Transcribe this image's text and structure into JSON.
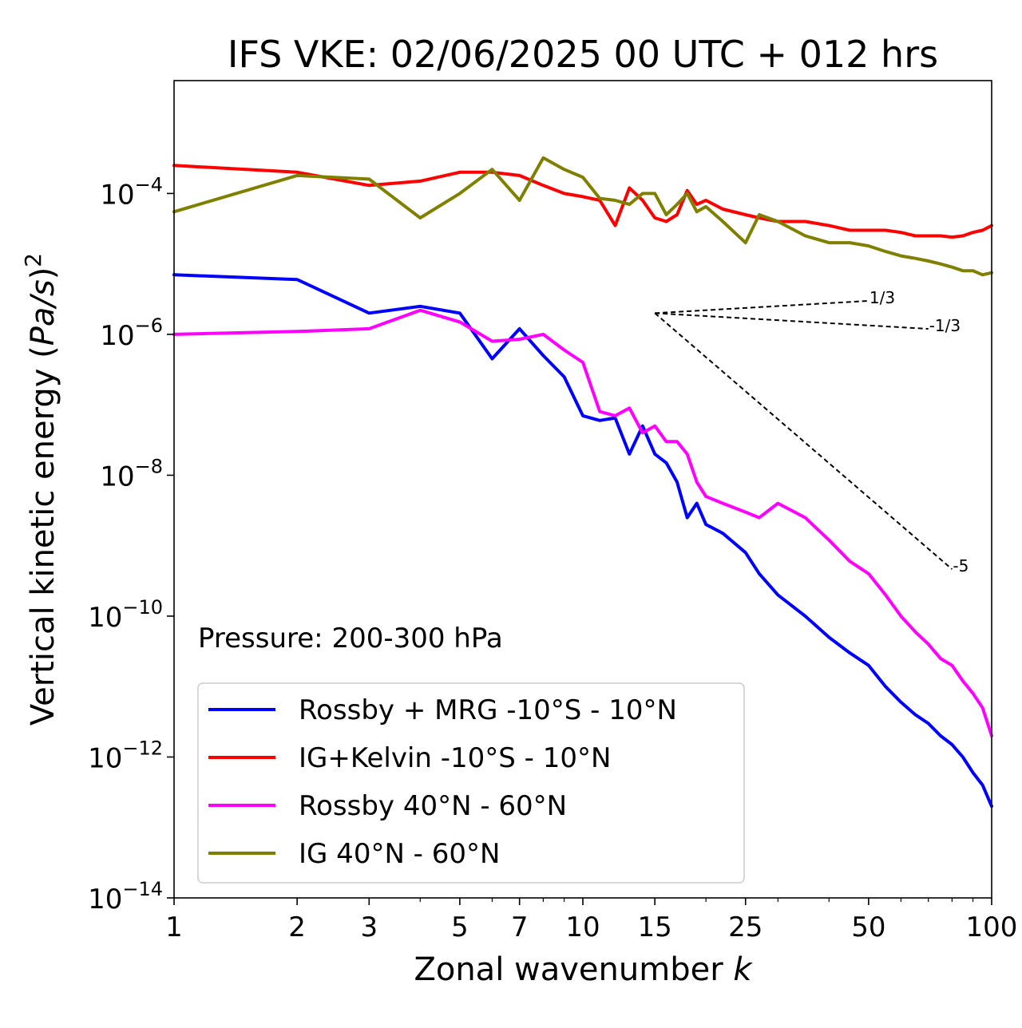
{
  "chart_data": {
    "type": "line",
    "title": "IFS VKE: 02/06/2025 00 UTC + 012 hrs",
    "xlabel": "Zonal wavenumber k",
    "ylabel": "Vertical kinetic energy (Pa/s)^2",
    "xscale": "log",
    "yscale": "log",
    "xlim": [
      1,
      100
    ],
    "ylim": [
      1e-14,
      0.004
    ],
    "xticks": [
      1,
      2,
      3,
      5,
      7,
      10,
      15,
      25,
      50,
      100
    ],
    "xtick_labels": [
      "1",
      "2",
      "3",
      "5",
      "7",
      "10",
      "15",
      "25",
      "50",
      "100"
    ],
    "yticks": [
      1e-14,
      1e-12,
      1e-10,
      1e-08,
      1e-06,
      0.0001
    ],
    "ytick_labels": [
      {
        "base": "10",
        "exp": "−14"
      },
      {
        "base": "10",
        "exp": "−12"
      },
      {
        "base": "10",
        "exp": "−10"
      },
      {
        "base": "10",
        "exp": "−8"
      },
      {
        "base": "10",
        "exp": "−6"
      },
      {
        "base": "10",
        "exp": "−4"
      }
    ],
    "grid": false,
    "legend_position": "lower-left",
    "annotation": "Pressure: 200-300 hPa",
    "series": [
      {
        "name": "Rossby + MRG -10°S - 10°N",
        "color": "#0000ff",
        "x": [
          1,
          2,
          3,
          4,
          5,
          6,
          7,
          8,
          9,
          10,
          11,
          12,
          13,
          14,
          15,
          16,
          17,
          18,
          19,
          20,
          22,
          25,
          27,
          30,
          35,
          40,
          45,
          50,
          55,
          60,
          65,
          70,
          75,
          80,
          85,
          90,
          95,
          100
        ],
        "y": [
          7e-06,
          6e-06,
          2e-06,
          2.5e-06,
          2e-06,
          4.5e-07,
          1.2e-06,
          5e-07,
          2.5e-07,
          7e-08,
          6e-08,
          6.5e-08,
          2e-08,
          5e-08,
          2e-08,
          1.5e-08,
          8e-09,
          2.5e-09,
          4e-09,
          2e-09,
          1.5e-09,
          8e-10,
          4e-10,
          2e-10,
          1e-10,
          5e-11,
          3e-11,
          2e-11,
          1e-11,
          6e-12,
          4e-12,
          3e-12,
          2e-12,
          1.5e-12,
          1e-12,
          6e-13,
          4e-13,
          2e-13
        ]
      },
      {
        "name": "IG+Kelvin -10°S - 10°N",
        "color": "#ff0000",
        "x": [
          1,
          2,
          3,
          4,
          5,
          6,
          7,
          8,
          9,
          10,
          11,
          12,
          13,
          14,
          15,
          16,
          17,
          18,
          19,
          20,
          22,
          25,
          27,
          30,
          35,
          40,
          45,
          50,
          55,
          60,
          65,
          70,
          75,
          80,
          85,
          90,
          95,
          100
        ],
        "y": [
          0.00025,
          0.0002,
          0.00013,
          0.00015,
          0.0002,
          0.0002,
          0.00018,
          0.00013,
          0.0001,
          9e-05,
          8e-05,
          3.5e-05,
          0.00012,
          8e-05,
          4.5e-05,
          4e-05,
          5e-05,
          0.00011,
          7e-05,
          8e-05,
          6e-05,
          5e-05,
          4.5e-05,
          4e-05,
          4e-05,
          3.5e-05,
          3e-05,
          3e-05,
          3e-05,
          2.8e-05,
          2.5e-05,
          2.5e-05,
          2.5e-05,
          2.4e-05,
          2.5e-05,
          2.8e-05,
          3e-05,
          3.5e-05
        ]
      },
      {
        "name": "Rossby 40°N - 60°N",
        "color": "#ff00ff",
        "x": [
          1,
          2,
          3,
          4,
          5,
          6,
          7,
          8,
          9,
          10,
          11,
          12,
          13,
          14,
          15,
          16,
          17,
          18,
          19,
          20,
          22,
          25,
          27,
          30,
          35,
          40,
          45,
          50,
          55,
          60,
          65,
          70,
          75,
          80,
          85,
          90,
          95,
          100
        ],
        "y": [
          1e-06,
          1.1e-06,
          1.2e-06,
          2.2e-06,
          1.5e-06,
          8e-07,
          8.5e-07,
          1e-06,
          6e-07,
          4e-07,
          8e-08,
          7e-08,
          9e-08,
          4e-08,
          5e-08,
          3e-08,
          3e-08,
          2e-08,
          8e-09,
          5e-09,
          4e-09,
          3e-09,
          2.5e-09,
          4e-09,
          2.5e-09,
          1.2e-09,
          6e-10,
          4e-10,
          2e-10,
          1e-10,
          6e-11,
          4e-11,
          2.5e-11,
          2e-11,
          1.2e-11,
          8e-12,
          5e-12,
          2e-12
        ]
      },
      {
        "name": "IG 40°N - 60°N",
        "color": "#808000",
        "x": [
          1,
          2,
          3,
          4,
          5,
          6,
          7,
          8,
          9,
          10,
          11,
          12,
          13,
          14,
          15,
          16,
          17,
          18,
          19,
          20,
          22,
          25,
          27,
          30,
          35,
          40,
          45,
          50,
          55,
          60,
          65,
          70,
          75,
          80,
          85,
          90,
          95,
          100
        ],
        "y": [
          5.5e-05,
          0.00018,
          0.00016,
          4.5e-05,
          0.0001,
          0.00022,
          8e-05,
          0.00032,
          0.00022,
          0.00017,
          8.5e-05,
          8e-05,
          7e-05,
          0.0001,
          0.0001,
          5e-05,
          7e-05,
          0.0001,
          5.5e-05,
          6.5e-05,
          4e-05,
          2e-05,
          5e-05,
          4e-05,
          2.5e-05,
          2e-05,
          2e-05,
          1.8e-05,
          1.5e-05,
          1.3e-05,
          1.2e-05,
          1.1e-05,
          1e-05,
          9e-06,
          8e-06,
          8e-06,
          7e-06,
          7.5e-06
        ]
      }
    ],
    "reference_lines": [
      {
        "label": "1/3",
        "slope": 0.3333,
        "x_start": 15,
        "x_end": 50,
        "y_start": 2e-06
      },
      {
        "label": "-1/3",
        "slope": -0.3333,
        "x_start": 15,
        "x_end": 70,
        "y_start": 2e-06
      },
      {
        "label": "-5",
        "slope": -5,
        "x_start": 15,
        "x_end": 80,
        "y_start": 2e-06
      }
    ]
  }
}
